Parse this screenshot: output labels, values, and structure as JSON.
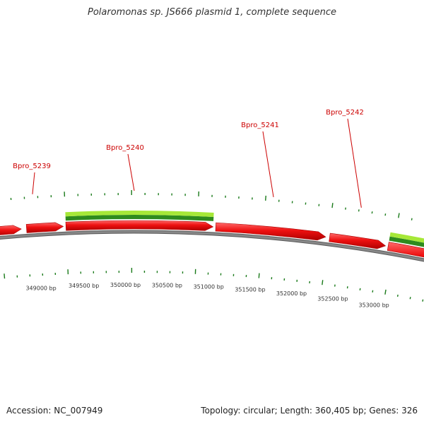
{
  "title": "Polaromonas sp. JS666 plasmid 1, complete sequence",
  "footer": {
    "accession": "Accession: NC_007949",
    "summary": "Topology: circular; Length: 360,405 bp; Genes: 326"
  },
  "colors": {
    "gene_forward": "#ee1111",
    "backbone": "#888888",
    "feature_light": "#a6e838",
    "feature_dark": "#2e8b1e",
    "tick": "#1a7a1a",
    "label": "#cc0000"
  },
  "genes": [
    {
      "name": "Bpro_5239"
    },
    {
      "name": "Bpro_5240"
    },
    {
      "name": "Bpro_5241"
    },
    {
      "name": "Bpro_5242"
    }
  ],
  "position_labels": [
    "349000 bp",
    "349500 bp",
    "350000 bp",
    "350500 bp",
    "351000 bp",
    "351500 bp",
    "352000 bp",
    "352500 bp",
    "353000 bp"
  ]
}
